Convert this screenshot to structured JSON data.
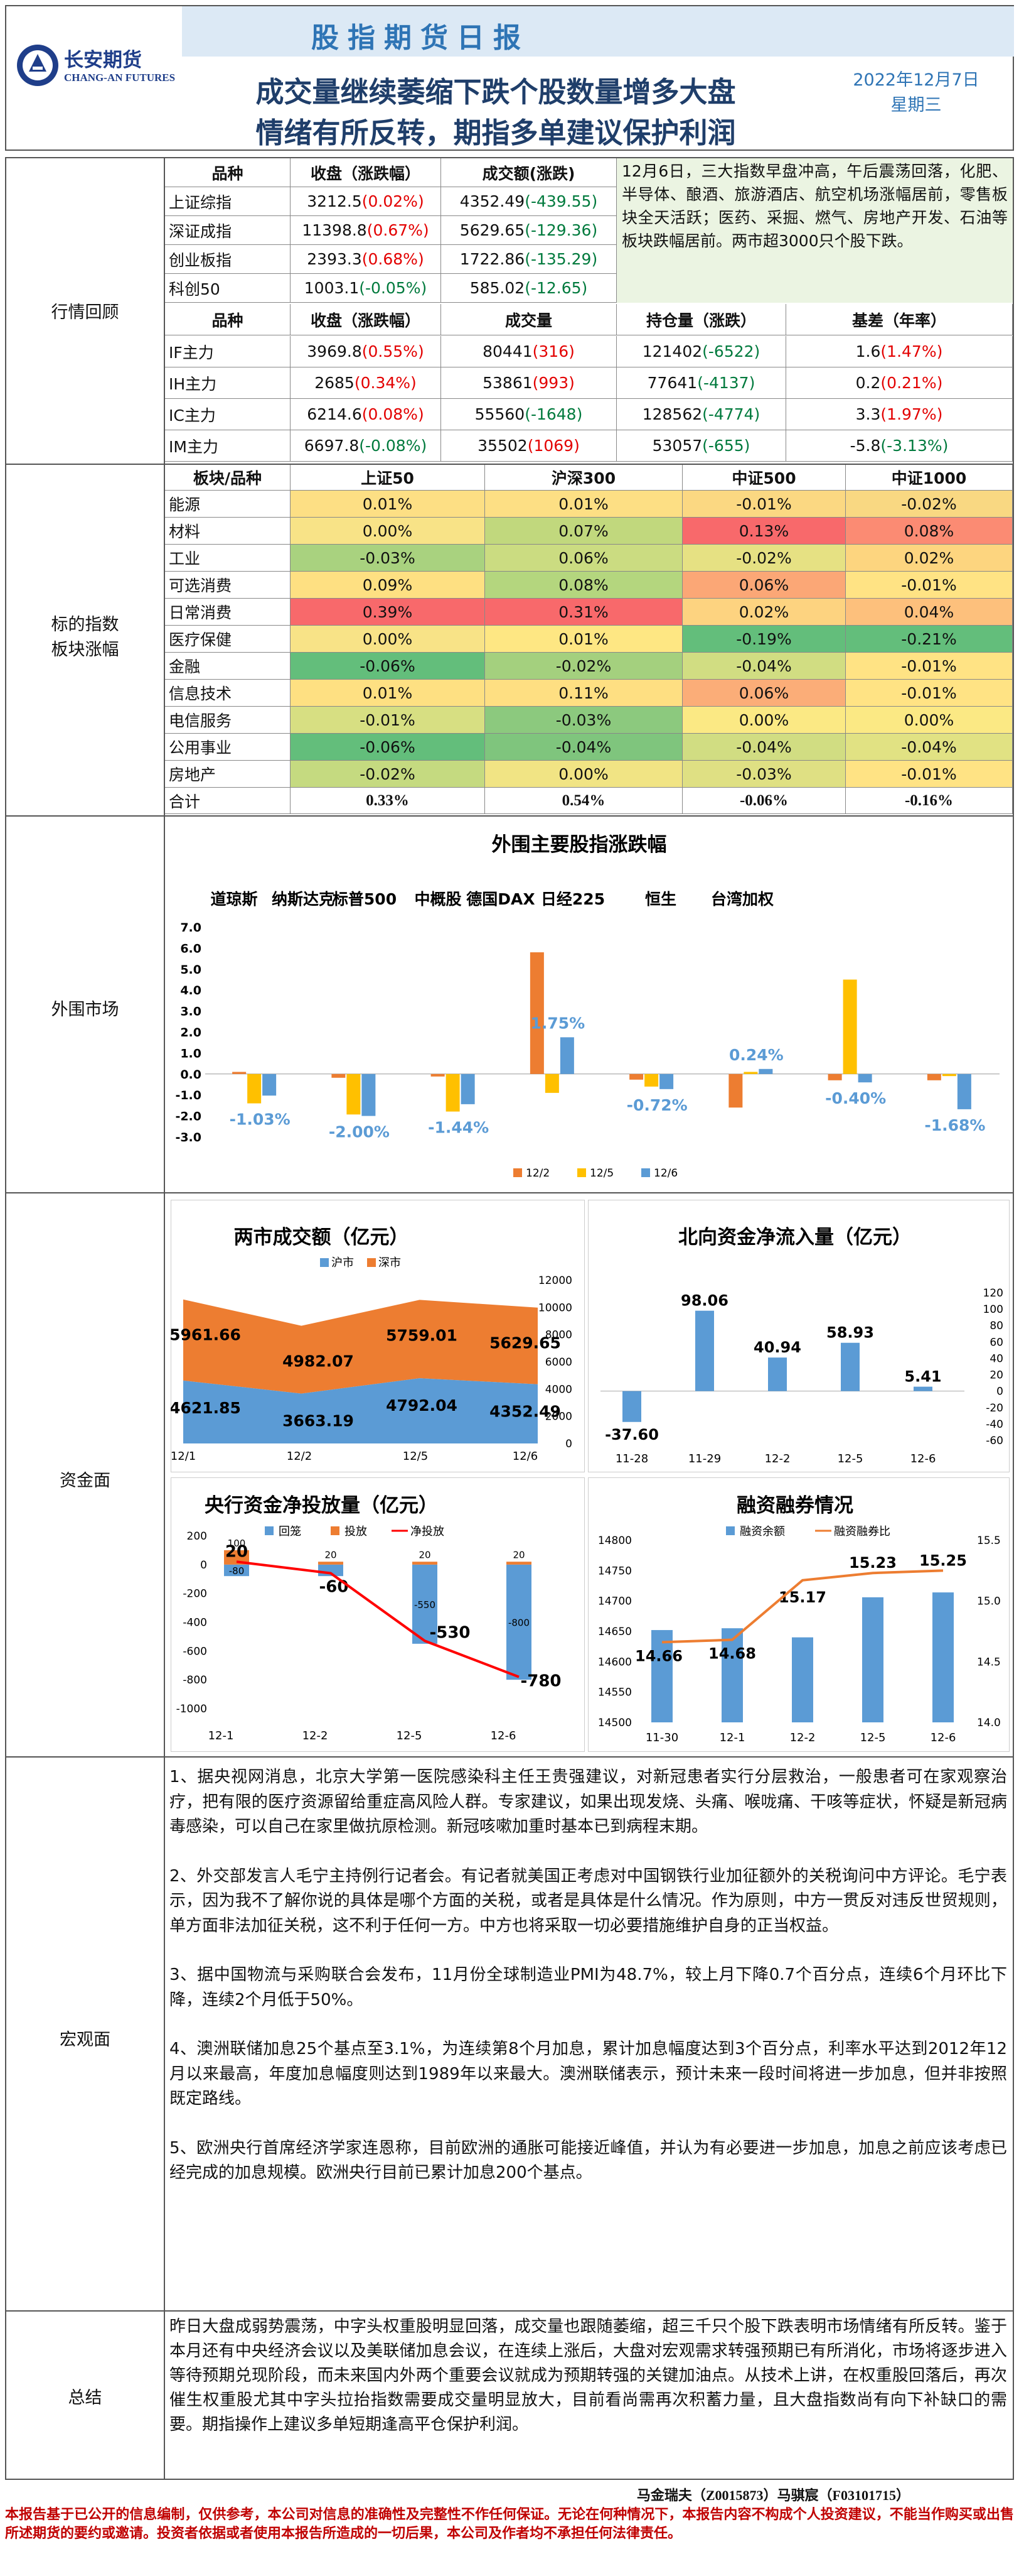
{
  "header": {
    "logo_cn": "长安期货",
    "logo_en": "CHANG-AN FUTURES",
    "report_name": "股指期货日报",
    "headline1": "成交量继续萎缩下跌个股数量增多大盘",
    "headline2": "情绪有所反转，期指多单建议保护利润",
    "date": "2022年12月7日",
    "weekday": "星期三"
  },
  "sections": {
    "market": "行情回顾",
    "sector": "标的指数\n板块涨幅",
    "overseas": "外围市场",
    "funds": "资金面",
    "macro": "宏观面",
    "summary": "总结"
  },
  "index_table": {
    "headers": [
      "品种",
      "收盘（涨跌幅）",
      "成交额(涨跌)"
    ],
    "rows": [
      {
        "name": "上证综指",
        "close": "3212.5",
        "chg": "(0.02%)",
        "amt": "4352.49",
        "amt_chg": "(-439.55)",
        "c1": "red",
        "c2": "grn"
      },
      {
        "name": "深证成指",
        "close": "11398.8",
        "chg": "(0.67%)",
        "amt": "5629.65",
        "amt_chg": "(-129.36)",
        "c1": "red",
        "c2": "grn"
      },
      {
        "name": "创业板指",
        "close": "2393.3",
        "chg": "(0.68%)",
        "amt": "1722.86",
        "amt_chg": "(-135.29)",
        "c1": "red",
        "c2": "grn"
      },
      {
        "name": "科创50",
        "close": "1003.1",
        "chg": "(-0.05%)",
        "amt": "585.02",
        "amt_chg": "(-12.65)",
        "c1": "grn",
        "c2": "grn"
      }
    ],
    "comment": "12月6日，三大指数早盘冲高，午后震荡回落，化肥、半导体、酿酒、旅游酒店、航空机场涨幅居前，零售板块全天活跃；医药、采掘、燃气、房地产开发、石油等板块跌幅居前。两市超3000只个股下跌。"
  },
  "futures_table": {
    "headers": [
      "品种",
      "收盘（涨跌幅）",
      "成交量",
      "持仓量（涨跌）",
      "基差（年率）"
    ],
    "rows": [
      {
        "name": "IF主力",
        "close": "3969.8",
        "chg": "(0.55%)",
        "vol": "80441",
        "vol_chg": "(316)",
        "oi": "121402",
        "oi_chg": "(-6522)",
        "basis": "1.6",
        "basis_rate": "(1.47%)",
        "c1": "red",
        "c2": "red",
        "c3": "grn",
        "c4": "red"
      },
      {
        "name": "IH主力",
        "close": "2685",
        "chg": "(0.34%)",
        "vol": "53861",
        "vol_chg": "(993)",
        "oi": "77641",
        "oi_chg": "(-4137)",
        "basis": "0.2",
        "basis_rate": "(0.21%)",
        "c1": "red",
        "c2": "red",
        "c3": "grn",
        "c4": "red"
      },
      {
        "name": "IC主力",
        "close": "6214.6",
        "chg": "(0.08%)",
        "vol": "55560",
        "vol_chg": "(-1648)",
        "oi": "128562",
        "oi_chg": "(-4774)",
        "basis": "3.3",
        "basis_rate": "(1.97%)",
        "c1": "red",
        "c2": "grn",
        "c3": "grn",
        "c4": "red"
      },
      {
        "name": "IM主力",
        "close": "6697.8",
        "chg": "(-0.08%)",
        "vol": "35502",
        "vol_chg": "(1069)",
        "oi": "53057",
        "oi_chg": "(-655)",
        "basis": "-5.8",
        "basis_rate": "(-3.13%)",
        "c1": "grn",
        "c2": "red",
        "c3": "grn",
        "c4": "grn"
      }
    ]
  },
  "sector_table": {
    "headers": [
      "板块/品种",
      "上证50",
      "沪深300",
      "中证500",
      "中证1000"
    ],
    "rows": [
      {
        "name": "能源",
        "v": [
          "0.01%",
          "0.01%",
          "-0.01%",
          "-0.02%"
        ],
        "c": [
          "#fddf84",
          "#fddf84",
          "#fbd882",
          "#f9d882"
        ]
      },
      {
        "name": "材料",
        "v": [
          "0.00%",
          "0.07%",
          "0.13%",
          "0.08%"
        ],
        "c": [
          "#f8e387",
          "#c1d87d",
          "#f8696b",
          "#fb8b73"
        ]
      },
      {
        "name": "工业",
        "v": [
          "-0.03%",
          "0.06%",
          "-0.02%",
          "0.02%"
        ],
        "c": [
          "#a9d27f",
          "#cbdc81",
          "#e6e183",
          "#fdd57f"
        ]
      },
      {
        "name": "可选消费",
        "v": [
          "0.09%",
          "0.08%",
          "0.06%",
          "-0.01%"
        ],
        "c": [
          "#fee082",
          "#b4d67e",
          "#fba776",
          "#ffe384"
        ]
      },
      {
        "name": "日常消费",
        "v": [
          "0.39%",
          "0.31%",
          "0.02%",
          "0.04%"
        ],
        "c": [
          "#f8696b",
          "#f8696b",
          "#fdd380",
          "#fdc07c"
        ]
      },
      {
        "name": "医疗保健",
        "v": [
          "0.00%",
          "0.01%",
          "-0.19%",
          "-0.21%"
        ],
        "c": [
          "#f8e387",
          "#fee783",
          "#63be7b",
          "#63be7b"
        ]
      },
      {
        "name": "金融",
        "v": [
          "-0.06%",
          "-0.02%",
          "-0.04%",
          "-0.01%"
        ],
        "c": [
          "#63be7b",
          "#a4d07e",
          "#d1dd82",
          "#ffe384"
        ]
      },
      {
        "name": "信息技术",
        "v": [
          "0.01%",
          "0.11%",
          "0.06%",
          "-0.01%"
        ],
        "c": [
          "#fee082",
          "#fedf82",
          "#fbad78",
          "#ffe384"
        ]
      },
      {
        "name": "电信服务",
        "v": [
          "-0.01%",
          "-0.03%",
          "0.00%",
          "0.00%"
        ],
        "c": [
          "#d7df82",
          "#8cc97e",
          "#fbe984",
          "#fbe984"
        ]
      },
      {
        "name": "公用事业",
        "v": [
          "-0.06%",
          "-0.04%",
          "-0.04%",
          "-0.04%"
        ],
        "c": [
          "#63be7b",
          "#7fc57d",
          "#d1dd82",
          "#e1e283"
        ]
      },
      {
        "name": "房地产",
        "v": [
          "-0.02%",
          "0.00%",
          "-0.03%",
          "-0.01%"
        ],
        "c": [
          "#c5da80",
          "#f1e484",
          "#dfe083",
          "#ffe384"
        ]
      }
    ],
    "total": {
      "name": "合计",
      "v": [
        "0.33%",
        "0.54%",
        "-0.06%",
        "-0.16%"
      ]
    }
  },
  "chart_data": [
    {
      "type": "bar",
      "title": "外围主要股指涨跌幅",
      "categories": [
        "道琼斯",
        "纳斯达克",
        "标普500",
        "中概股",
        "德国DAX",
        "日经225",
        "恒生",
        "台湾加权"
      ],
      "series": [
        {
          "name": "12/2",
          "color": "#ed7d31",
          "values": [
            0.1,
            -0.18,
            -0.12,
            5.8,
            -0.27,
            -1.6,
            -0.3,
            -0.3
          ]
        },
        {
          "name": "12/5",
          "color": "#ffc000",
          "values": [
            -1.4,
            -1.93,
            -1.79,
            -0.9,
            -0.6,
            0.1,
            4.5,
            -0.1
          ]
        },
        {
          "name": "12/6",
          "color": "#5b9bd5",
          "values": [
            -1.03,
            -2.0,
            -1.44,
            1.75,
            -0.72,
            0.24,
            -0.4,
            -1.68
          ]
        }
      ],
      "labels": [
        "-1.03%",
        "-2.00%",
        "-1.44%",
        "1.75%",
        "-0.72%",
        "0.24%",
        "-0.40%",
        "-1.68%"
      ],
      "ylim": [
        -3.0,
        7.0
      ],
      "ticks": [
        "7.0",
        "6.0",
        "5.0",
        "4.0",
        "3.0",
        "2.0",
        "1.0",
        "0.0",
        "-1.0",
        "-2.0",
        "-3.0"
      ]
    },
    {
      "type": "bar",
      "title": "两市成交额（亿元）",
      "categories": [
        "12/1",
        "12/2",
        "12/5",
        "12/6"
      ],
      "series": [
        {
          "name": "沪市",
          "color": "#5b9bd5",
          "values": [
            4621.85,
            3663.19,
            4792.04,
            4352.49
          ]
        },
        {
          "name": "深市",
          "color": "#ed7d31",
          "values": [
            5961.66,
            4982.07,
            5759.01,
            5629.65
          ]
        }
      ],
      "ylim": [
        0,
        12000
      ],
      "ticks": [
        "12000",
        "10000",
        "8000",
        "6000",
        "4000",
        "2000",
        "0"
      ]
    },
    {
      "type": "bar",
      "title": "北向资金净流入量（亿元）",
      "categories": [
        "11-28",
        "11-29",
        "12-2",
        "12-5",
        "12-6"
      ],
      "values": [
        -37.6,
        98.06,
        40.94,
        58.93,
        5.41
      ],
      "labels": [
        "-37.60",
        "98.06",
        "40.94",
        "58.93",
        "5.41"
      ],
      "ylim": [
        -60,
        120
      ],
      "ticks": [
        "120",
        "100",
        "80",
        "60",
        "40",
        "20",
        "0",
        "-20",
        "-40",
        "-60"
      ]
    },
    {
      "type": "bar",
      "title": "央行资金净投放量（亿元）",
      "categories": [
        "12-1",
        "12-2",
        "12-5",
        "12-6"
      ],
      "series": [
        {
          "name": "回笼",
          "color": "#5b9bd5",
          "values": [
            -80,
            -80,
            -550,
            -800
          ]
        },
        {
          "name": "投放",
          "color": "#ed7d31",
          "values": [
            100,
            20,
            20,
            20
          ]
        },
        {
          "name": "净投放",
          "color": "#ff0000",
          "values": [
            20,
            -60,
            -530,
            -780
          ]
        }
      ],
      "series_labels": {
        "withdraw": [
          "-80",
          "",
          "-550",
          "-800"
        ],
        "inject": [
          "100",
          "20",
          "20",
          "20"
        ],
        "net": [
          "20",
          "-60",
          "-530",
          "-780"
        ]
      },
      "ylim": [
        -1000,
        200
      ],
      "ticks": [
        "200",
        "0",
        "-200",
        "-400",
        "-600",
        "-800",
        "-1000"
      ]
    },
    {
      "type": "bar",
      "title": "融资融券情况",
      "categories": [
        "11-30",
        "12-1",
        "12-2",
        "12-5",
        "12-6"
      ],
      "series": [
        {
          "name": "融资余额",
          "color": "#5b9bd5",
          "values": [
            14652,
            14655,
            14640,
            14706,
            14714
          ]
        },
        {
          "name": "融资融券比",
          "color": "#ed7d31",
          "values": [
            14.66,
            14.68,
            15.17,
            15.23,
            15.25
          ]
        }
      ],
      "labels": [
        "14.66",
        "14.68",
        "15.17",
        "15.23",
        "15.25"
      ],
      "ylim": [
        14500,
        14800
      ],
      "ticks": [
        "14800",
        "14750",
        "14700",
        "14650",
        "14600",
        "14550",
        "14500"
      ],
      "y2ticks": [
        "15.5",
        "15.0",
        "14.5",
        "14.0"
      ]
    }
  ],
  "macro": [
    "1、据央视网消息，北京大学第一医院感染科主任王贵强建议，对新冠患者实行分层救治，一般患者可在家观察治疗，把有限的医疗资源留给重症高风险人群。专家建议，如果出现发烧、头痛、喉咙痛、干咳等症状，怀疑是新冠病毒感染，可以自己在家里做抗原检测。新冠咳嗽加重时基本已到病程末期。",
    "2、外交部发言人毛宁主持例行记者会。有记者就美国正考虑对中国钢铁行业加征额外的关税询问中方评论。毛宁表示，因为我不了解你说的具体是哪个方面的关税，或者是具体是什么情况。作为原则，中方一贯反对违反世贸规则，单方面非法加征关税，这不利于任何一方。中方也将采取一切必要措施维护自身的正当权益。",
    "3、据中国物流与采购联合会发布，11月份全球制造业PMI为48.7%，较上月下降0.7个百分点，连续6个月环比下降，连续2个月低于50%。",
    "4、澳洲联储加息25个基点至3.1%，为连续第8个月加息，累计加息幅度达到3个百分点，利率水平达到2012年12月以来最高，年度加息幅度则达到1989年以来最大。澳洲联储表示，预计未来一段时间将进一步加息，但并非按照既定路线。",
    "5、欧洲央行首席经济学家连恩称，目前欧洲的通胀可能接近峰值，并认为有必要进一步加息，加息之前应该考虑已经完成的加息规模。欧洲央行目前已累计加息200个基点。"
  ],
  "summary": "昨日大盘成弱势震荡，中字头权重股明显回落，成交量也跟随萎缩，超三千只个股下跌表明市场情绪有所反转。鉴于本月还有中央经济会议以及美联储加息会议，在连续上涨后，大盘对宏观需求转强预期已有所消化，市场将逐步进入等待预期兑现阶段，而未来国内外两个重要会议就成为预期转强的关键加油点。从技术上讲，在权重股回落后，再次催生权重股尤其中字头拉抬指数需要成交量明显放大，目前看尚需再次积蓄力量，且大盘指数尚有向下补缺口的需要。期指操作上建议多单短期逢高平仓保护利润。",
  "footer": {
    "authors": "马金瑞夫（Z0015873）马骐宸（F03101715）",
    "disclaimer": "本报告基于已公开的信息编制，仅供参考，本公司对信息的准确性及完整性不作任何保证。无论在何种情况下，本报告内容不构成个人投资建议，不能当作购买或出售所述期货的要约或邀请。投资者依据或者使用本报告所造成的一切后果，本公司及作者均不承担任何法律责任。"
  }
}
